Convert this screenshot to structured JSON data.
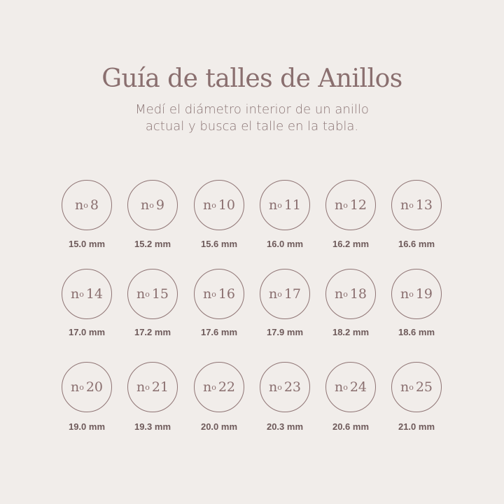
{
  "title": "Guía de talles de Anillos",
  "subtitle_lines": [
    "Medí el diámetro interior de un anillo",
    "actual y busca el talle en la tabla."
  ],
  "sizes": [
    {
      "n": "8",
      "mm": "15.0 mm"
    },
    {
      "n": "9",
      "mm": "15.2 mm"
    },
    {
      "n": "10",
      "mm": "15.6 mm"
    },
    {
      "n": "11",
      "mm": "16.0 mm"
    },
    {
      "n": "12",
      "mm": "16.2 mm"
    },
    {
      "n": "13",
      "mm": "16.6 mm"
    },
    {
      "n": "14",
      "mm": "17.0 mm"
    },
    {
      "n": "15",
      "mm": "17.2 mm"
    },
    {
      "n": "16",
      "mm": "17.6 mm"
    },
    {
      "n": "17",
      "mm": "17.9 mm"
    },
    {
      "n": "18",
      "mm": "18.2 mm"
    },
    {
      "n": "19",
      "mm": "18.6 mm"
    },
    {
      "n": "20",
      "mm": "19.0 mm"
    },
    {
      "n": "21",
      "mm": "19.3 mm"
    },
    {
      "n": "22",
      "mm": "20.0 mm"
    },
    {
      "n": "23",
      "mm": "20.3 mm"
    },
    {
      "n": "24",
      "mm": "20.6 mm"
    },
    {
      "n": "25",
      "mm": "21.0 mm"
    }
  ],
  "prefix": "n",
  "prefix_sup": "o",
  "colors": {
    "background": "#f1edea",
    "accent": "#8a6f6f",
    "text": "#6e5a5a"
  }
}
